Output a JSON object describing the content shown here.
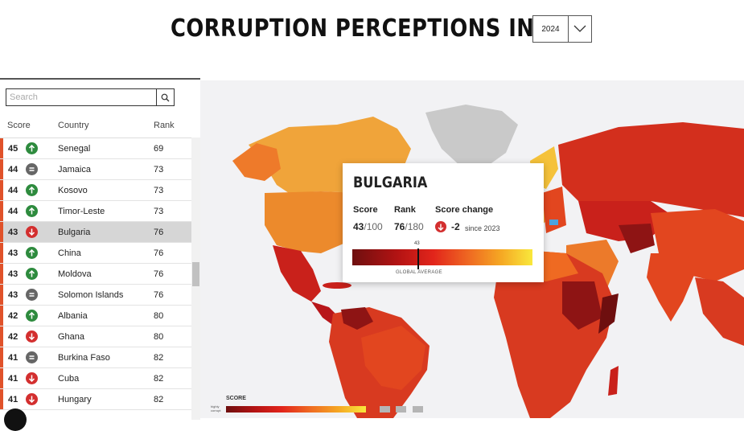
{
  "header": {
    "title": "CORRUPTION PERCEPTIONS INDEX",
    "year": "2024"
  },
  "search": {
    "placeholder": "Search"
  },
  "table": {
    "columns": {
      "score": "Score",
      "country": "Country",
      "rank": "Rank"
    },
    "rows": [
      {
        "score": "45",
        "change": "up",
        "country": "Senegal",
        "rank": "69"
      },
      {
        "score": "44",
        "change": "same",
        "country": "Jamaica",
        "rank": "73"
      },
      {
        "score": "44",
        "change": "up",
        "country": "Kosovo",
        "rank": "73"
      },
      {
        "score": "44",
        "change": "up",
        "country": "Timor-Leste",
        "rank": "73"
      },
      {
        "score": "43",
        "change": "down",
        "country": "Bulgaria",
        "rank": "76",
        "selected": true
      },
      {
        "score": "43",
        "change": "up",
        "country": "China",
        "rank": "76"
      },
      {
        "score": "43",
        "change": "up",
        "country": "Moldova",
        "rank": "76"
      },
      {
        "score": "43",
        "change": "same",
        "country": "Solomon Islands",
        "rank": "76"
      },
      {
        "score": "42",
        "change": "up",
        "country": "Albania",
        "rank": "80"
      },
      {
        "score": "42",
        "change": "down",
        "country": "Ghana",
        "rank": "80"
      },
      {
        "score": "41",
        "change": "same",
        "country": "Burkina Faso",
        "rank": "82"
      },
      {
        "score": "41",
        "change": "down",
        "country": "Cuba",
        "rank": "82"
      },
      {
        "score": "41",
        "change": "down",
        "country": "Hungary",
        "rank": "82"
      }
    ]
  },
  "tooltip": {
    "country": "BULGARIA",
    "score_label": "Score",
    "rank_label": "Rank",
    "change_label": "Score change",
    "score": "43",
    "score_max": "/100",
    "rank": "76",
    "rank_max": "/180",
    "change": "-2",
    "since": "since 2023",
    "marker_value": "43",
    "global_average": "GLOBAL AVERAGE"
  },
  "legend": {
    "title": "SCORE",
    "low_label": "highly corrupt"
  },
  "colors": {
    "up": "#2e8b3e",
    "down": "#d32f2f",
    "same": "#666666",
    "accent": "#e0522a"
  },
  "icons": {
    "search": "search-icon",
    "dropdown": "chevron-down-icon"
  }
}
